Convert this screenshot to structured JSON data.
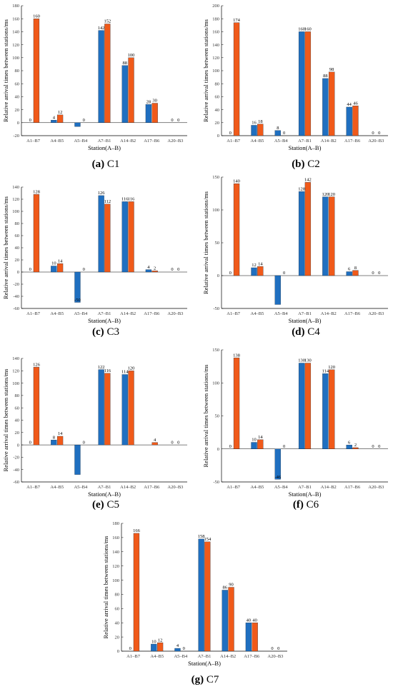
{
  "figure": {
    "station_categories": [
      "A1–B7",
      "A4–B5",
      "A5–B4",
      "A7–B1",
      "A14–B2",
      "A17–B6",
      "A20–B3"
    ],
    "ylabel": "Relative arrival times between stations/ms",
    "xlabel": "Station(A–B)",
    "colors": {
      "blue": "#1f6fc0",
      "orange": "#f05a1a"
    }
  },
  "chart_data": [
    {
      "type": "bar",
      "caption_letter": "(a)",
      "caption_name": "C1",
      "categories": [
        "A1–B7",
        "A4–B5",
        "A5–B4",
        "A7–B1",
        "A14–B2",
        "A17–B6",
        "A20–B3"
      ],
      "ylim": [
        -20,
        180
      ],
      "yticks": [
        -20,
        0,
        20,
        40,
        60,
        80,
        100,
        120,
        140,
        160,
        180
      ],
      "ytick_labels": [
        "-20",
        "0",
        "20",
        "40",
        "60",
        "80",
        "100",
        "120",
        "140",
        "160",
        "180"
      ],
      "series": [
        {
          "values": [
            0,
            4,
            -6,
            142,
            88,
            28,
            0
          ],
          "labels": [
            "0",
            "4",
            "",
            "142",
            "88",
            "28",
            "0"
          ]
        },
        {
          "values": [
            160,
            12,
            0,
            152,
            100,
            30,
            0
          ],
          "labels": [
            "160",
            "12",
            "0",
            "152",
            "100",
            "30",
            "0"
          ]
        }
      ]
    },
    {
      "type": "bar",
      "caption_letter": "(b)",
      "caption_name": "C2",
      "categories": [
        "A1–B7",
        "A4–B5",
        "A5–B4",
        "A7–B1",
        "A14–B2",
        "A17–B6",
        "A20–B3"
      ],
      "ylim": [
        0,
        200
      ],
      "yticks": [
        0,
        20,
        40,
        60,
        80,
        100,
        120,
        140,
        160,
        180,
        200
      ],
      "ytick_labels": [
        "0",
        "20",
        "40",
        "60",
        "80",
        "100",
        "120",
        "140",
        "160",
        "180",
        "200"
      ],
      "series": [
        {
          "values": [
            0,
            16,
            8,
            160,
            88,
            44,
            0
          ],
          "labels": [
            "0",
            "16",
            "8",
            "160",
            "88",
            "44",
            "0"
          ]
        },
        {
          "values": [
            174,
            18,
            0,
            160,
            98,
            46,
            0
          ],
          "labels": [
            "174",
            "18",
            "0",
            "160",
            "98",
            "46",
            "0"
          ]
        }
      ]
    },
    {
      "type": "bar",
      "caption_letter": "(c)",
      "caption_name": "C3",
      "categories": [
        "A1–B7",
        "A4–B5",
        "A5–B4",
        "A7–B1",
        "A14–B2",
        "A17–B6",
        "A20–B3"
      ],
      "ylim": [
        -60,
        140
      ],
      "yticks": [
        -60,
        -40,
        -20,
        0,
        20,
        40,
        60,
        80,
        100,
        120,
        140
      ],
      "ytick_labels": [
        "-60",
        "-40",
        "-20",
        "0",
        "20",
        "40",
        "60",
        "80",
        "100",
        "120",
        "140"
      ],
      "series": [
        {
          "values": [
            0,
            10,
            -50,
            126,
            116,
            4,
            0
          ],
          "labels": [
            "0",
            "10",
            "-50",
            "126",
            "116",
            "4",
            "0"
          ]
        },
        {
          "values": [
            128,
            14,
            0,
            112,
            116,
            2,
            0
          ],
          "labels": [
            "128",
            "14",
            "0",
            "112",
            "116",
            "2",
            "0"
          ]
        }
      ]
    },
    {
      "type": "bar",
      "caption_letter": "(d)",
      "caption_name": "C4",
      "categories": [
        "A1–B7",
        "A4–B5",
        "A5–B4",
        "A7–B1",
        "A14–B2",
        "A17–B6",
        "A20–B3"
      ],
      "ylim": [
        -50,
        150
      ],
      "yticks": [
        -50,
        0,
        50,
        100,
        150
      ],
      "ytick_labels": [
        "-50",
        "0",
        "50",
        "100",
        "150"
      ],
      "series": [
        {
          "values": [
            0,
            12,
            -44,
            128,
            120,
            6,
            0
          ],
          "labels": [
            "0",
            "12",
            "",
            "128",
            "120",
            "6",
            "0"
          ]
        },
        {
          "values": [
            140,
            14,
            0,
            142,
            120,
            8,
            0
          ],
          "labels": [
            "140",
            "14",
            "0",
            "142",
            "120",
            "8",
            "0"
          ]
        }
      ]
    },
    {
      "type": "bar",
      "caption_letter": "(e)",
      "caption_name": "C5",
      "categories": [
        "A1–B7",
        "A4–B5",
        "A5–B4",
        "A7–B1",
        "A14–B2",
        "A17–B6",
        "A20–B3"
      ],
      "ylim": [
        -60,
        140
      ],
      "yticks": [
        -60,
        -40,
        -20,
        0,
        20,
        40,
        60,
        80,
        100,
        120,
        140
      ],
      "ytick_labels": [
        "-60",
        "-40",
        "-20",
        "0",
        "20",
        "40",
        "60",
        "80",
        "100",
        "120",
        "140"
      ],
      "series": [
        {
          "values": [
            0,
            8,
            -48,
            122,
            114,
            0,
            0
          ],
          "labels": [
            "0",
            "8",
            "",
            "122",
            "114",
            "",
            "0"
          ]
        },
        {
          "values": [
            126,
            14,
            0,
            116,
            120,
            4,
            0
          ],
          "labels": [
            "126",
            "14",
            "0",
            "116",
            "120",
            "4",
            "0"
          ]
        }
      ]
    },
    {
      "type": "bar",
      "caption_letter": "(f)",
      "caption_name": "C6",
      "categories": [
        "A1–B7",
        "A4–B5",
        "A5–B4",
        "A7–B1",
        "A14–B2",
        "A17–B6",
        "A20–B3"
      ],
      "ylim": [
        -50,
        150
      ],
      "yticks": [
        -50,
        0,
        50,
        100,
        150
      ],
      "ytick_labels": [
        "-50",
        "0",
        "50",
        "100",
        "150"
      ],
      "series": [
        {
          "values": [
            0,
            10,
            -46,
            130,
            114,
            6,
            0
          ],
          "labels": [
            "0",
            "10",
            "-46",
            "130",
            "114",
            "6",
            "0"
          ]
        },
        {
          "values": [
            138,
            14,
            0,
            130,
            120,
            2,
            0
          ],
          "labels": [
            "138",
            "14",
            "0",
            "130",
            "120",
            "2",
            "0"
          ]
        }
      ]
    },
    {
      "type": "bar",
      "caption_letter": "(g)",
      "caption_name": "C7",
      "categories": [
        "A1–B7",
        "A4–B5",
        "A5–B4",
        "A7–B1",
        "A14–B2",
        "A17–B6",
        "A20–B3"
      ],
      "ylim": [
        0,
        180
      ],
      "yticks": [
        0,
        20,
        40,
        60,
        80,
        100,
        120,
        140,
        160,
        180
      ],
      "ytick_labels": [
        "0",
        "20",
        "40",
        "60",
        "80",
        "100",
        "120",
        "140",
        "160",
        "180"
      ],
      "series": [
        {
          "values": [
            0,
            10,
            4,
            158,
            86,
            40,
            0
          ],
          "labels": [
            "0",
            "10",
            "4",
            "158",
            "86",
            "40",
            "0"
          ]
        },
        {
          "values": [
            166,
            12,
            0,
            154,
            90,
            40,
            0
          ],
          "labels": [
            "166",
            "12",
            "0",
            "154",
            "90",
            "40",
            "0"
          ]
        }
      ]
    }
  ]
}
